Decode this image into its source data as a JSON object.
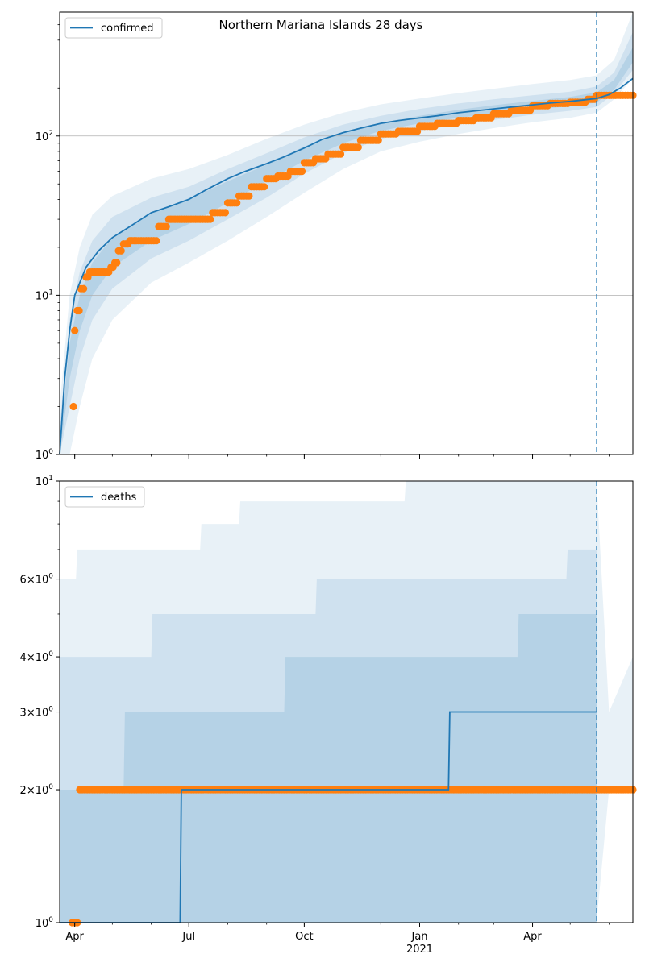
{
  "chart_data": [
    {
      "type": "line",
      "title": "Northern Mariana Islands 28 days",
      "yscale": "log",
      "ylim": [
        1,
        600
      ],
      "xlim": [
        "2020-03-20",
        "2021-06-20"
      ],
      "grid": "horizontal major",
      "legend": "top-left",
      "ytick_labels": [
        "10^0",
        "10^1",
        "10^2"
      ],
      "ytick_values": [
        1,
        10,
        100
      ],
      "x_axis": {
        "month_ticks": [
          "Apr",
          "Jul",
          "Oct",
          "Jan",
          "Apr"
        ],
        "month_tick_dates": [
          "2020-04-01",
          "2020-07-01",
          "2020-10-01",
          "2021-01-01",
          "2021-04-01"
        ],
        "year_label": "2021",
        "year_label_date": "2021-01-01"
      },
      "forecast_start": "2021-05-22",
      "series": [
        {
          "name": "confirmed",
          "kind": "model-line",
          "color": "#1f77b4",
          "x": [
            "2020-03-20",
            "2020-03-24",
            "2020-03-28",
            "2020-04-01",
            "2020-04-10",
            "2020-04-20",
            "2020-05-01",
            "2020-05-15",
            "2020-06-01",
            "2020-06-15",
            "2020-07-01",
            "2020-07-15",
            "2020-08-01",
            "2020-08-15",
            "2020-09-01",
            "2020-09-15",
            "2020-10-01",
            "2020-10-15",
            "2020-11-01",
            "2020-11-15",
            "2020-12-01",
            "2020-12-15",
            "2021-01-01",
            "2021-01-15",
            "2021-02-01",
            "2021-02-15",
            "2021-03-01",
            "2021-03-15",
            "2021-04-01",
            "2021-04-15",
            "2021-05-01",
            "2021-05-22",
            "2021-06-01",
            "2021-06-10",
            "2021-06-20"
          ],
          "y": [
            1,
            3,
            6,
            10,
            15,
            19,
            23,
            27,
            33,
            36,
            40,
            46,
            54,
            60,
            67,
            74,
            84,
            95,
            105,
            112,
            120,
            125,
            130,
            134,
            140,
            144,
            148,
            152,
            157,
            161,
            165,
            172,
            182,
            200,
            230
          ]
        },
        {
          "name": "",
          "kind": "observed-points",
          "color": "#ff7f0e",
          "x": [
            "2020-03-31",
            "2020-04-01",
            "2020-04-03",
            "2020-04-06",
            "2020-04-10",
            "2020-04-13",
            "2020-04-15",
            "2020-04-30",
            "2020-05-03",
            "2020-05-06",
            "2020-05-10",
            "2020-05-15",
            "2020-05-20",
            "2020-06-01",
            "2020-06-07",
            "2020-06-15",
            "2020-06-20",
            "2020-07-01",
            "2020-07-10",
            "2020-07-20",
            "2020-08-01",
            "2020-08-10",
            "2020-08-20",
            "2020-09-01",
            "2020-09-10",
            "2020-09-20",
            "2020-10-01",
            "2020-10-10",
            "2020-10-20",
            "2020-11-01",
            "2020-11-15",
            "2020-12-01",
            "2020-12-15",
            "2021-01-01",
            "2021-01-15",
            "2021-02-01",
            "2021-02-15",
            "2021-03-01",
            "2021-03-15",
            "2021-04-01",
            "2021-04-15",
            "2021-05-01",
            "2021-05-15",
            "2021-05-22",
            "2021-06-01",
            "2021-06-10",
            "2021-06-20"
          ],
          "y": [
            2,
            6,
            8,
            11,
            13,
            14,
            14,
            15,
            16,
            19,
            21,
            22,
            22,
            22,
            27,
            30,
            30,
            30,
            30,
            33,
            38,
            42,
            48,
            54,
            56,
            60,
            68,
            72,
            77,
            85,
            94,
            103,
            107,
            115,
            120,
            125,
            130,
            138,
            145,
            155,
            160,
            163,
            170,
            180,
            180,
            180,
            180
          ]
        }
      ],
      "bands": [
        {
          "level": "outer",
          "x": [
            "2020-03-20",
            "2020-03-28",
            "2020-04-05",
            "2020-04-15",
            "2020-05-01",
            "2020-06-01",
            "2020-07-01",
            "2020-08-01",
            "2020-09-01",
            "2020-10-01",
            "2020-11-01",
            "2020-12-01",
            "2021-01-01",
            "2021-02-01",
            "2021-03-01",
            "2021-04-01",
            "2021-05-01",
            "2021-05-22",
            "2021-06-05",
            "2021-06-20"
          ],
          "low": [
            1,
            1,
            2,
            4,
            7,
            12,
            16,
            22,
            31,
            44,
            62,
            80,
            92,
            103,
            112,
            122,
            130,
            140,
            170,
            230
          ],
          "high": [
            2,
            10,
            20,
            32,
            42,
            54,
            62,
            76,
            96,
            118,
            140,
            158,
            172,
            186,
            198,
            212,
            225,
            240,
            300,
            600
          ]
        },
        {
          "level": "middle",
          "x": [
            "2020-03-20",
            "2020-03-28",
            "2020-04-05",
            "2020-04-15",
            "2020-05-01",
            "2020-06-01",
            "2020-07-01",
            "2020-08-01",
            "2020-09-01",
            "2020-10-01",
            "2020-11-01",
            "2020-12-01",
            "2021-01-01",
            "2021-02-01",
            "2021-03-01",
            "2021-04-01",
            "2021-05-01",
            "2021-05-22",
            "2021-06-05",
            "2021-06-20"
          ],
          "low": [
            1,
            2,
            4,
            7,
            11,
            17,
            22,
            30,
            41,
            58,
            78,
            96,
            108,
            118,
            126,
            136,
            144,
            152,
            185,
            260
          ],
          "high": [
            1.5,
            7,
            14,
            22,
            31,
            41,
            48,
            62,
            78,
            98,
            118,
            134,
            148,
            160,
            170,
            180,
            190,
            205,
            250,
            450
          ]
        },
        {
          "level": "inner",
          "x": [
            "2020-03-20",
            "2020-03-28",
            "2020-04-05",
            "2020-04-15",
            "2020-05-01",
            "2020-06-01",
            "2020-07-01",
            "2020-08-01",
            "2020-09-01",
            "2020-10-01",
            "2020-11-01",
            "2020-12-01",
            "2021-01-01",
            "2021-02-01",
            "2021-03-01",
            "2021-04-01",
            "2021-05-01",
            "2021-05-22",
            "2021-06-05",
            "2021-06-20"
          ],
          "low": [
            1,
            3,
            6,
            10,
            15,
            22,
            28,
            38,
            52,
            70,
            90,
            108,
            120,
            130,
            138,
            146,
            154,
            162,
            195,
            290
          ],
          "high": [
            1.2,
            5,
            10,
            16,
            23,
            33,
            40,
            52,
            66,
            86,
            104,
            120,
            134,
            146,
            156,
            166,
            176,
            188,
            225,
            360
          ]
        }
      ]
    },
    {
      "type": "line",
      "title": "",
      "yscale": "log",
      "ylim": [
        1,
        10
      ],
      "xlim": [
        "2020-03-20",
        "2021-06-20"
      ],
      "legend": "top-left",
      "ytick_labels": [
        "10^0",
        "2×10^0",
        "3×10^0",
        "4×10^0",
        "6×10^0",
        "10^1"
      ],
      "ytick_values": [
        1,
        2,
        3,
        4,
        6,
        10
      ],
      "x_axis": {
        "month_ticks": [
          "Apr",
          "Jul",
          "Oct",
          "Jan",
          "Apr"
        ],
        "month_tick_dates": [
          "2020-04-01",
          "2020-07-01",
          "2020-10-01",
          "2021-01-01",
          "2021-04-01"
        ],
        "year_label": "2021",
        "year_label_date": "2021-01-01"
      },
      "forecast_start": "2021-05-22",
      "series": [
        {
          "name": "deaths",
          "kind": "model-step",
          "color": "#1f77b4",
          "x": [
            "2020-03-20",
            "2020-06-24",
            "2020-06-25",
            "2021-01-24",
            "2021-01-25",
            "2021-05-22"
          ],
          "y": [
            1,
            1,
            2,
            2,
            3,
            3
          ]
        },
        {
          "name": "",
          "kind": "observed-points",
          "color": "#ff7f0e",
          "x": [
            "2020-03-30",
            "2020-04-01",
            "2020-04-03",
            "2020-04-05",
            "2020-05-01",
            "2020-06-01",
            "2020-07-01",
            "2020-08-01",
            "2020-09-01",
            "2020-10-01",
            "2020-11-01",
            "2020-12-01",
            "2021-01-01",
            "2021-02-01",
            "2021-03-01",
            "2021-04-01",
            "2021-05-01",
            "2021-06-01",
            "2021-06-20"
          ],
          "y": [
            1,
            1,
            1,
            2,
            2,
            2,
            2,
            2,
            2,
            2,
            2,
            2,
            2,
            2,
            2,
            2,
            2,
            2,
            2
          ]
        }
      ],
      "bands": [
        {
          "level": "outer",
          "x": [
            "2020-03-20",
            "2020-04-02",
            "2020-04-03",
            "2020-07-10",
            "2020-07-11",
            "2020-08-10",
            "2020-08-11",
            "2020-12-20",
            "2020-12-21",
            "2021-05-22",
            "2021-06-01",
            "2021-06-20"
          ],
          "low": [
            1,
            1,
            1,
            1,
            1,
            1,
            1,
            1,
            1,
            1,
            2,
            2
          ],
          "high": [
            6,
            6,
            7,
            7,
            8,
            8,
            9,
            9,
            10,
            10,
            3,
            4
          ]
        },
        {
          "level": "middle",
          "x": [
            "2020-03-20",
            "2020-06-01",
            "2020-06-02",
            "2020-10-10",
            "2020-10-11",
            "2021-04-28",
            "2021-04-29",
            "2021-05-22"
          ],
          "low": [
            1,
            1,
            1,
            1,
            1,
            1,
            1,
            1
          ],
          "high": [
            4,
            4,
            5,
            5,
            6,
            6,
            7,
            7
          ]
        },
        {
          "level": "inner",
          "x": [
            "2020-03-20",
            "2020-05-10",
            "2020-05-11",
            "2020-09-15",
            "2020-09-16",
            "2021-03-20",
            "2021-03-21",
            "2021-05-22"
          ],
          "low": [
            1,
            1,
            1,
            1,
            1,
            1,
            1,
            1
          ],
          "high": [
            2,
            2,
            3,
            3,
            4,
            4,
            5,
            5
          ]
        }
      ]
    }
  ]
}
